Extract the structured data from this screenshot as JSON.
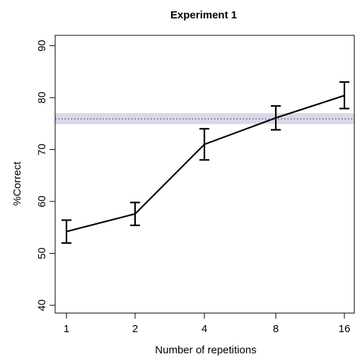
{
  "chart_data": {
    "type": "line",
    "title": "Experiment 1",
    "xlabel": "Number of repetitions",
    "ylabel": "%Correct",
    "x_ticks": [
      "1",
      "2",
      "4",
      "8",
      "16"
    ],
    "y_ticks": [
      40,
      50,
      60,
      70,
      80,
      90
    ],
    "ylim": [
      38.5,
      92
    ],
    "grid": false,
    "series": [
      {
        "x": [
          "1",
          "2",
          "4",
          "8",
          "16"
        ],
        "values": [
          54.2,
          57.6,
          71.0,
          76.1,
          80.4
        ],
        "error_low": [
          52.0,
          55.4,
          68.0,
          73.8,
          77.9
        ],
        "error_high": [
          56.4,
          59.8,
          74.0,
          78.4,
          83.0
        ],
        "color": "#000000"
      }
    ],
    "reference": {
      "value": 75.9,
      "band": [
        74.9,
        77.0
      ],
      "line_color": "#3b3bd0",
      "line_style": "dotted",
      "band_color": "#d9d9e3"
    }
  }
}
